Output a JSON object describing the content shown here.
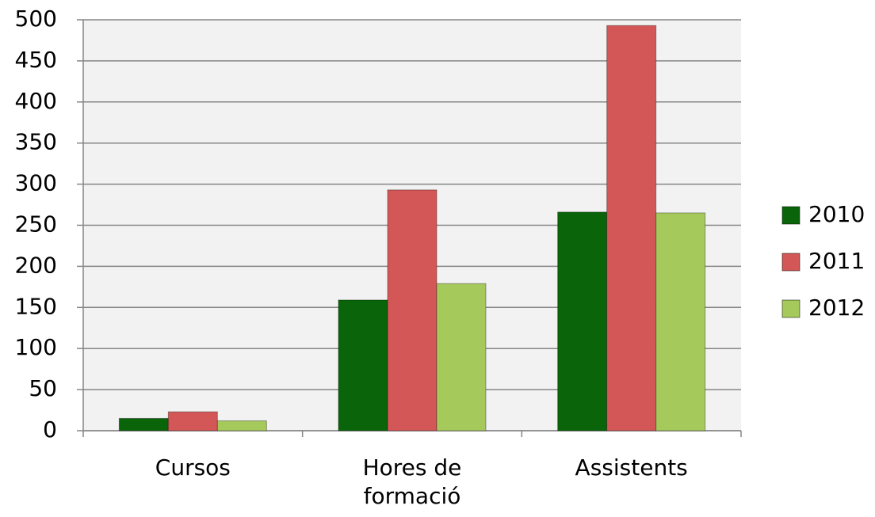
{
  "chart_data": {
    "type": "bar",
    "categories": [
      "Cursos",
      "Hores de formació",
      "Assistents"
    ],
    "series": [
      {
        "name": "2010",
        "color": "#0a650a",
        "values": [
          15,
          159,
          266
        ]
      },
      {
        "name": "2011",
        "color": "#d45757",
        "values": [
          23,
          293,
          493
        ]
      },
      {
        "name": "2012",
        "color": "#a6c95c",
        "values": [
          12,
          179,
          265
        ]
      }
    ],
    "ylim": [
      0,
      500
    ],
    "yticks": [
      0,
      50,
      100,
      150,
      200,
      250,
      300,
      350,
      400,
      450,
      500
    ],
    "grid": true,
    "legend": "right"
  }
}
